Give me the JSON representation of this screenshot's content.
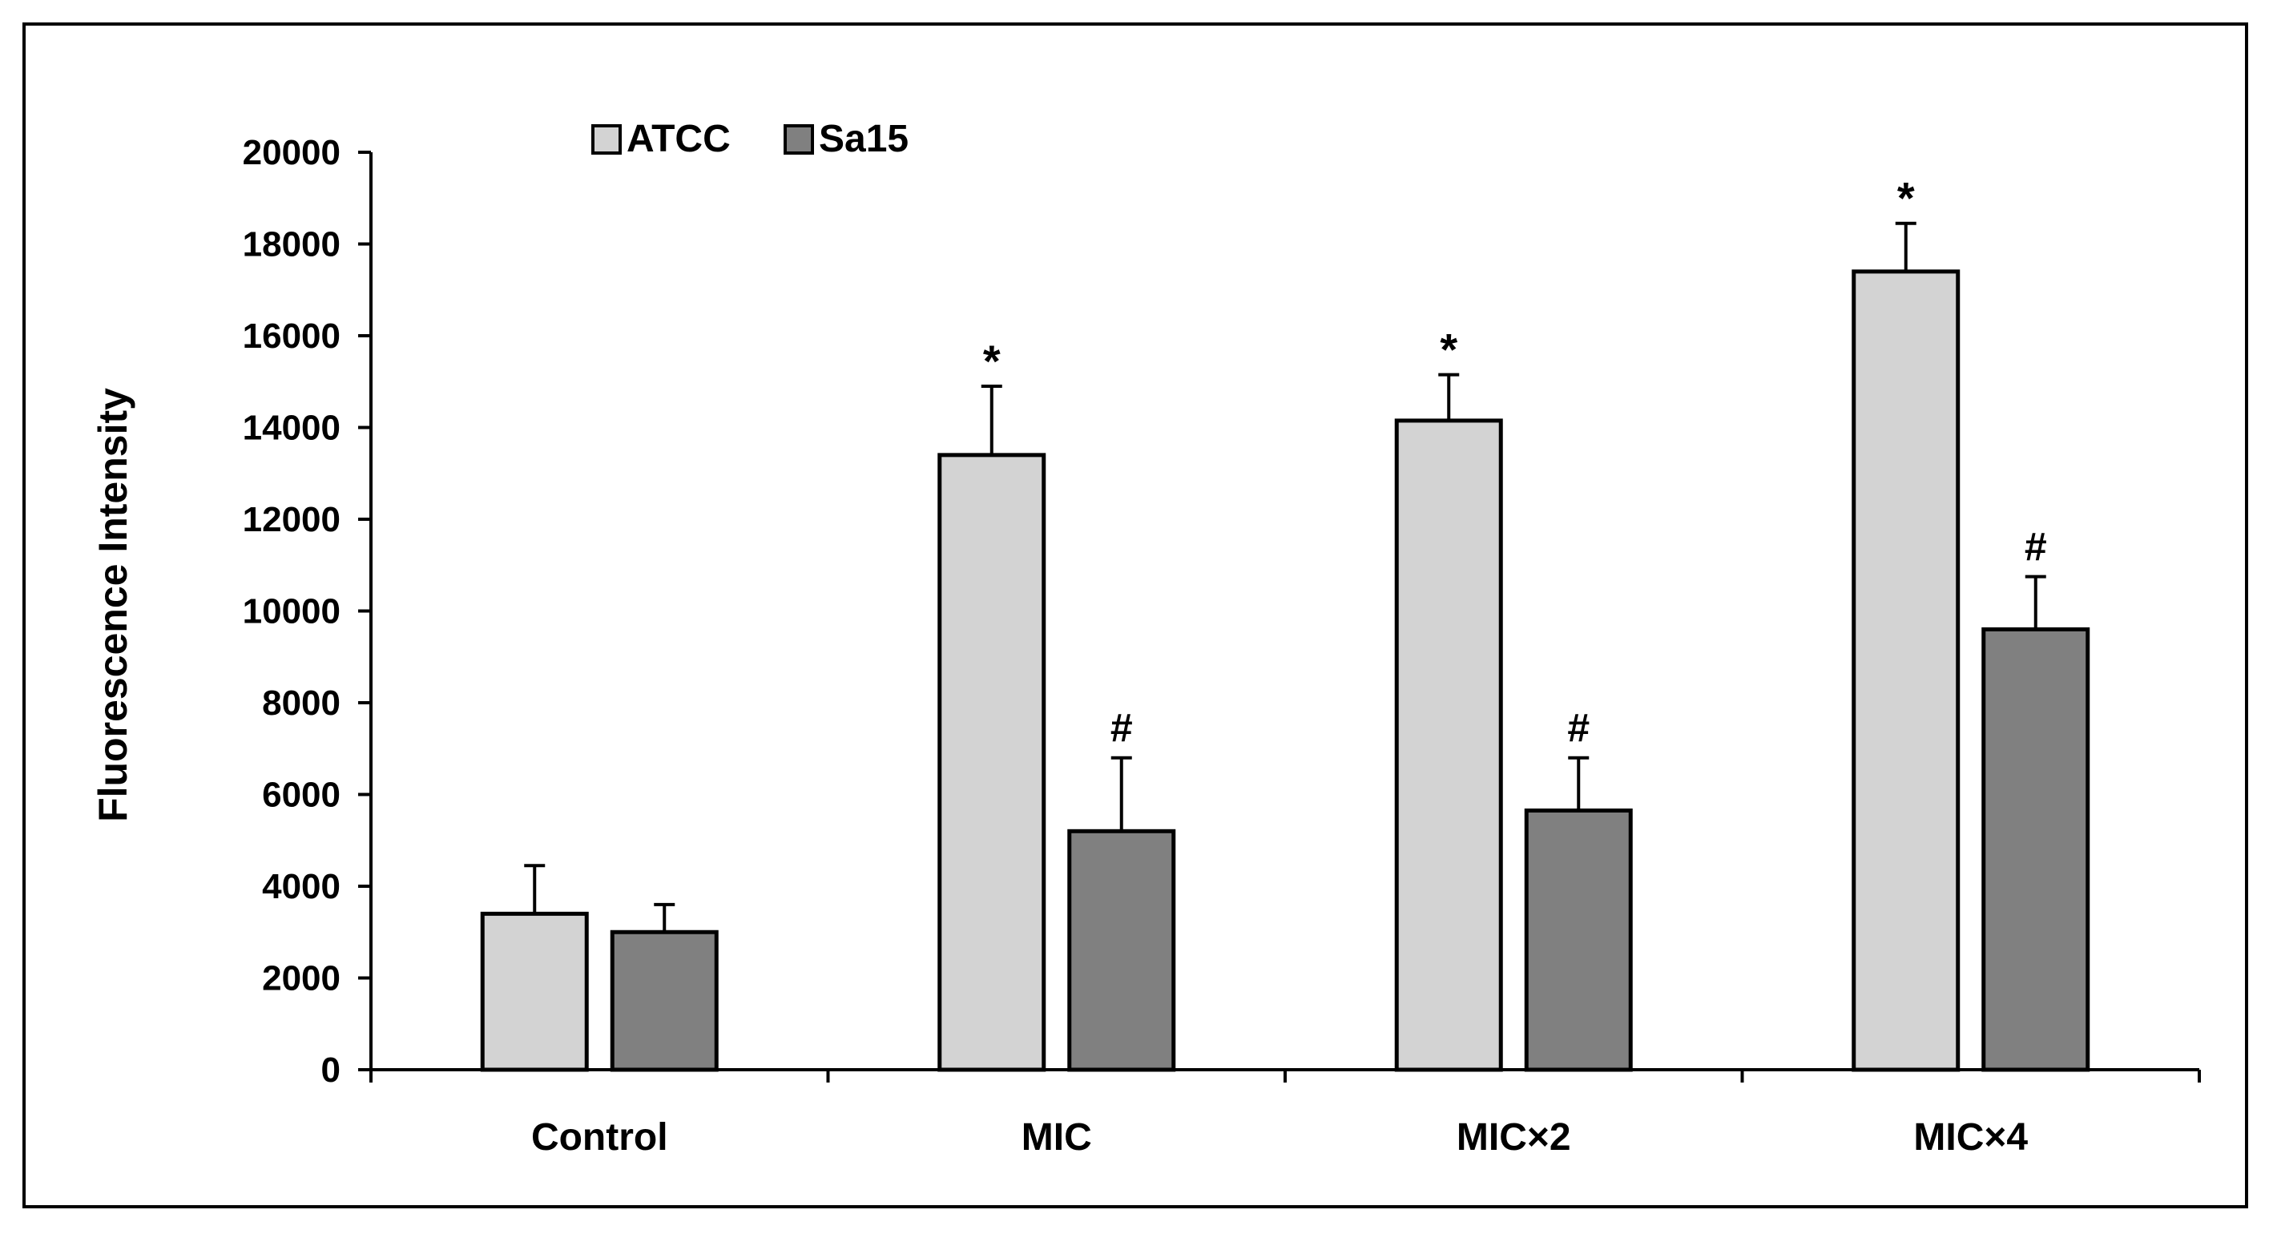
{
  "chart_data": {
    "type": "bar",
    "title": "",
    "xlabel": "",
    "ylabel": "Fluorescence Intensity",
    "ylim": [
      0,
      20000
    ],
    "yticks": [
      0,
      2000,
      4000,
      6000,
      8000,
      10000,
      12000,
      14000,
      16000,
      18000,
      20000
    ],
    "categories": [
      "Control",
      "MIC",
      "MIC×2",
      "MIC×4"
    ],
    "legend_position": "top-left",
    "series": [
      {
        "name": "ATCC",
        "color": "#d3d3d3",
        "values": [
          3400,
          13400,
          14150,
          17400
        ],
        "errors": [
          1050,
          1500,
          1000,
          1050
        ],
        "annotations": [
          "",
          "*",
          "*",
          "*"
        ]
      },
      {
        "name": "Sa15",
        "color": "#808080",
        "values": [
          3000,
          5200,
          5650,
          9600
        ],
        "errors": [
          600,
          1600,
          1150,
          1150
        ],
        "annotations": [
          "",
          "#",
          "#",
          "#"
        ]
      }
    ]
  }
}
